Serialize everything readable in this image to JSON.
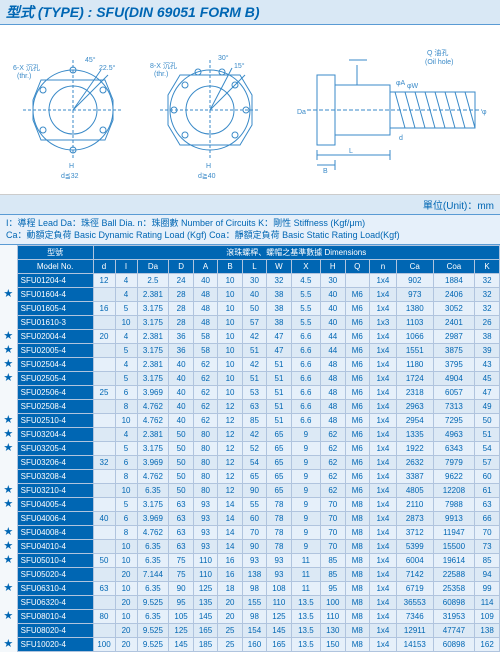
{
  "header": {
    "type_label": "型式 (TYPE) : SFU(DIN 69051 FORM B)"
  },
  "diagram": {
    "flange1": {
      "angle1": "45°",
      "angle2": "22.5°",
      "holes_label": "6-X 沉孔\n(thr.)",
      "dim_H": "H",
      "dim_d": "d≦32"
    },
    "flange2": {
      "angle1": "30°",
      "angle2": "15°",
      "holes_label": "8-X 沉孔\n(thr.)",
      "dim_H": "H",
      "dim_d": "d≧40"
    },
    "side": {
      "oil": "Q 油孔\n(Oil hole)",
      "dims": [
        "Da",
        "d",
        "φA",
        "φW",
        "φD",
        "L",
        "B"
      ]
    },
    "stroke_color": "#3a8ac8",
    "text_color": "#3a8ac8"
  },
  "unit_label": "單位(Unit)：mm",
  "legend": {
    "line1": "I：導程 Lead  Da：珠徑 Ball Dia.  n：珠圈數 Number of Circuits  K：剛性 Stiffness (Kgf/μm)",
    "line2": "Ca：動額定負荷 Basic Dynamic Rating Load (Kgf)  Coa：靜額定負荷 Basic Static Rating Load(Kgf)"
  },
  "table": {
    "group_top": {
      "left": "型號",
      "right": "滾珠螺桿、螺帽之基準數據 Dimensions"
    },
    "columns": [
      "Model No.",
      "d",
      "I",
      "Da",
      "D",
      "A",
      "B",
      "L",
      "W",
      "X",
      "H",
      "Q",
      "n",
      "Ca",
      "Coa",
      "K"
    ],
    "rows": [
      {
        "star": "",
        "model": "SFU01204-4",
        "d": "12",
        "I": "4",
        "Da": "2.5",
        "D": "24",
        "A": "40",
        "B": "10",
        "L": "30",
        "W": "32",
        "X": "4.5",
        "H": "30",
        "Q": "",
        "n": "1x4",
        "Ca": "902",
        "Coa": "1884",
        "K": "32"
      },
      {
        "star": "★",
        "model": "SFU01604-4",
        "d": "",
        "I": "4",
        "Da": "2.381",
        "D": "28",
        "A": "48",
        "B": "10",
        "L": "40",
        "W": "38",
        "X": "5.5",
        "H": "40",
        "Q": "M6",
        "n": "1x4",
        "Ca": "973",
        "Coa": "2406",
        "K": "32"
      },
      {
        "star": "",
        "model": "SFU01605-4",
        "d": "16",
        "I": "5",
        "Da": "3.175",
        "D": "28",
        "A": "48",
        "B": "10",
        "L": "50",
        "W": "38",
        "X": "5.5",
        "H": "40",
        "Q": "M6",
        "n": "1x4",
        "Ca": "1380",
        "Coa": "3052",
        "K": "32"
      },
      {
        "star": "",
        "model": "SFU01610-3",
        "d": "",
        "I": "10",
        "Da": "3.175",
        "D": "28",
        "A": "48",
        "B": "10",
        "L": "57",
        "W": "38",
        "X": "5.5",
        "H": "40",
        "Q": "M6",
        "n": "1x3",
        "Ca": "1103",
        "Coa": "2401",
        "K": "26"
      },
      {
        "star": "★",
        "model": "SFU02004-4",
        "d": "20",
        "I": "4",
        "Da": "2.381",
        "D": "36",
        "A": "58",
        "B": "10",
        "L": "42",
        "W": "47",
        "X": "6.6",
        "H": "44",
        "Q": "M6",
        "n": "1x4",
        "Ca": "1066",
        "Coa": "2987",
        "K": "38"
      },
      {
        "star": "★",
        "model": "SFU02005-4",
        "d": "",
        "I": "5",
        "Da": "3.175",
        "D": "36",
        "A": "58",
        "B": "10",
        "L": "51",
        "W": "47",
        "X": "6.6",
        "H": "44",
        "Q": "M6",
        "n": "1x4",
        "Ca": "1551",
        "Coa": "3875",
        "K": "39"
      },
      {
        "star": "★",
        "model": "SFU02504-4",
        "d": "",
        "I": "4",
        "Da": "2.381",
        "D": "40",
        "A": "62",
        "B": "10",
        "L": "42",
        "W": "51",
        "X": "6.6",
        "H": "48",
        "Q": "M6",
        "n": "1x4",
        "Ca": "1180",
        "Coa": "3795",
        "K": "43"
      },
      {
        "star": "★",
        "model": "SFU02505-4",
        "d": "",
        "I": "5",
        "Da": "3.175",
        "D": "40",
        "A": "62",
        "B": "10",
        "L": "51",
        "W": "51",
        "X": "6.6",
        "H": "48",
        "Q": "M6",
        "n": "1x4",
        "Ca": "1724",
        "Coa": "4904",
        "K": "45"
      },
      {
        "star": "",
        "model": "SFU02506-4",
        "d": "25",
        "I": "6",
        "Da": "3.969",
        "D": "40",
        "A": "62",
        "B": "10",
        "L": "53",
        "W": "51",
        "X": "6.6",
        "H": "48",
        "Q": "M6",
        "n": "1x4",
        "Ca": "2318",
        "Coa": "6057",
        "K": "47"
      },
      {
        "star": "",
        "model": "SFU02508-4",
        "d": "",
        "I": "8",
        "Da": "4.762",
        "D": "40",
        "A": "62",
        "B": "12",
        "L": "63",
        "W": "51",
        "X": "6.6",
        "H": "48",
        "Q": "M6",
        "n": "1x4",
        "Ca": "2963",
        "Coa": "7313",
        "K": "49"
      },
      {
        "star": "★",
        "model": "SFU02510-4",
        "d": "",
        "I": "10",
        "Da": "4.762",
        "D": "40",
        "A": "62",
        "B": "12",
        "L": "85",
        "W": "51",
        "X": "6.6",
        "H": "48",
        "Q": "M6",
        "n": "1x4",
        "Ca": "2954",
        "Coa": "7295",
        "K": "50"
      },
      {
        "star": "★",
        "model": "SFU03204-4",
        "d": "",
        "I": "4",
        "Da": "2.381",
        "D": "50",
        "A": "80",
        "B": "12",
        "L": "42",
        "W": "65",
        "X": "9",
        "H": "62",
        "Q": "M6",
        "n": "1x4",
        "Ca": "1335",
        "Coa": "4963",
        "K": "51"
      },
      {
        "star": "★",
        "model": "SFU03205-4",
        "d": "",
        "I": "5",
        "Da": "3.175",
        "D": "50",
        "A": "80",
        "B": "12",
        "L": "52",
        "W": "65",
        "X": "9",
        "H": "62",
        "Q": "M6",
        "n": "1x4",
        "Ca": "1922",
        "Coa": "6343",
        "K": "54"
      },
      {
        "star": "",
        "model": "SFU03206-4",
        "d": "32",
        "I": "6",
        "Da": "3.969",
        "D": "50",
        "A": "80",
        "B": "12",
        "L": "54",
        "W": "65",
        "X": "9",
        "H": "62",
        "Q": "M6",
        "n": "1x4",
        "Ca": "2632",
        "Coa": "7979",
        "K": "57"
      },
      {
        "star": "",
        "model": "SFU03208-4",
        "d": "",
        "I": "8",
        "Da": "4.762",
        "D": "50",
        "A": "80",
        "B": "12",
        "L": "65",
        "W": "65",
        "X": "9",
        "H": "62",
        "Q": "M6",
        "n": "1x4",
        "Ca": "3387",
        "Coa": "9622",
        "K": "60"
      },
      {
        "star": "★",
        "model": "SFU03210-4",
        "d": "",
        "I": "10",
        "Da": "6.35",
        "D": "50",
        "A": "80",
        "B": "12",
        "L": "90",
        "W": "65",
        "X": "9",
        "H": "62",
        "Q": "M6",
        "n": "1x4",
        "Ca": "4805",
        "Coa": "12208",
        "K": "61"
      },
      {
        "star": "★",
        "model": "SFU04005-4",
        "d": "",
        "I": "5",
        "Da": "3.175",
        "D": "63",
        "A": "93",
        "B": "14",
        "L": "55",
        "W": "78",
        "X": "9",
        "H": "70",
        "Q": "M8",
        "n": "1x4",
        "Ca": "2110",
        "Coa": "7988",
        "K": "63"
      },
      {
        "star": "",
        "model": "SFU04006-4",
        "d": "40",
        "I": "6",
        "Da": "3.969",
        "D": "63",
        "A": "93",
        "B": "14",
        "L": "60",
        "W": "78",
        "X": "9",
        "H": "70",
        "Q": "M8",
        "n": "1x4",
        "Ca": "2873",
        "Coa": "9913",
        "K": "66"
      },
      {
        "star": "★",
        "model": "SFU04008-4",
        "d": "",
        "I": "8",
        "Da": "4.762",
        "D": "63",
        "A": "93",
        "B": "14",
        "L": "70",
        "W": "78",
        "X": "9",
        "H": "70",
        "Q": "M8",
        "n": "1x4",
        "Ca": "3712",
        "Coa": "11947",
        "K": "70"
      },
      {
        "star": "★",
        "model": "SFU04010-4",
        "d": "",
        "I": "10",
        "Da": "6.35",
        "D": "63",
        "A": "93",
        "B": "14",
        "L": "90",
        "W": "78",
        "X": "9",
        "H": "70",
        "Q": "M8",
        "n": "1x4",
        "Ca": "5399",
        "Coa": "15500",
        "K": "73"
      },
      {
        "star": "★",
        "model": "SFU05010-4",
        "d": "50",
        "I": "10",
        "Da": "6.35",
        "D": "75",
        "A": "110",
        "B": "16",
        "L": "93",
        "W": "93",
        "X": "11",
        "H": "85",
        "Q": "M8",
        "n": "1x4",
        "Ca": "6004",
        "Coa": "19614",
        "K": "85"
      },
      {
        "star": "",
        "model": "SFU05020-4",
        "d": "",
        "I": "20",
        "Da": "7.144",
        "D": "75",
        "A": "110",
        "B": "16",
        "L": "138",
        "W": "93",
        "X": "11",
        "H": "85",
        "Q": "M8",
        "n": "1x4",
        "Ca": "7142",
        "Coa": "22588",
        "K": "94"
      },
      {
        "star": "★",
        "model": "SFU06310-4",
        "d": "63",
        "I": "10",
        "Da": "6.35",
        "D": "90",
        "A": "125",
        "B": "18",
        "L": "98",
        "W": "108",
        "X": "11",
        "H": "95",
        "Q": "M8",
        "n": "1x4",
        "Ca": "6719",
        "Coa": "25358",
        "K": "99"
      },
      {
        "star": "",
        "model": "SFU06320-4",
        "d": "",
        "I": "20",
        "Da": "9.525",
        "D": "95",
        "A": "135",
        "B": "20",
        "L": "155",
        "W": "110",
        "X": "13.5",
        "H": "100",
        "Q": "M8",
        "n": "1x4",
        "Ca": "36553",
        "Coa": "60898",
        "K": "114"
      },
      {
        "star": "★",
        "model": "SFU08010-4",
        "d": "80",
        "I": "10",
        "Da": "6.35",
        "D": "105",
        "A": "145",
        "B": "20",
        "L": "98",
        "W": "125",
        "X": "13.5",
        "H": "110",
        "Q": "M8",
        "n": "1x4",
        "Ca": "7346",
        "Coa": "31953",
        "K": "109"
      },
      {
        "star": "",
        "model": "SFU08020-4",
        "d": "",
        "I": "20",
        "Da": "9.525",
        "D": "125",
        "A": "165",
        "B": "25",
        "L": "154",
        "W": "145",
        "X": "13.5",
        "H": "130",
        "Q": "M8",
        "n": "1x4",
        "Ca": "12911",
        "Coa": "47747",
        "K": "138"
      },
      {
        "star": "★",
        "model": "SFU10020-4",
        "d": "100",
        "I": "20",
        "Da": "9.525",
        "D": "145",
        "A": "185",
        "B": "25",
        "L": "160",
        "W": "165",
        "X": "13.5",
        "H": "150",
        "Q": "M8",
        "n": "1x4",
        "Ca": "14153",
        "Coa": "60898",
        "K": "162"
      }
    ]
  }
}
